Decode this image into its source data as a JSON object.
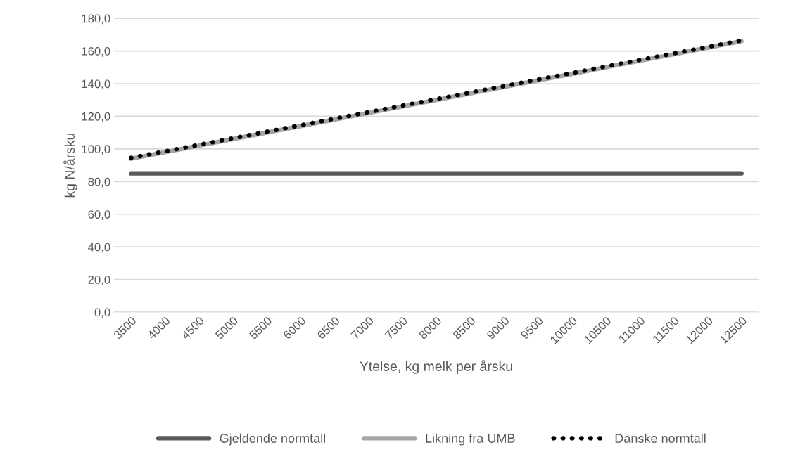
{
  "chart_data": {
    "type": "line",
    "xlabel": "Ytelse, kg melk per årsku",
    "ylabel": "kg N/årsku",
    "categories": [
      "3500",
      "4000",
      "4500",
      "5000",
      "5500",
      "6000",
      "6500",
      "7000",
      "7500",
      "8000",
      "8500",
      "9000",
      "9500",
      "10000",
      "10500",
      "11000",
      "11500",
      "12000",
      "12500"
    ],
    "ylim": [
      0,
      180
    ],
    "yticks": [
      {
        "value": 0,
        "label": "0,0"
      },
      {
        "value": 20,
        "label": "20,0"
      },
      {
        "value": 40,
        "label": "40,0"
      },
      {
        "value": 60,
        "label": "60,0"
      },
      {
        "value": 80,
        "label": "80,0"
      },
      {
        "value": 100,
        "label": "100,0"
      },
      {
        "value": 120,
        "label": "120,0"
      },
      {
        "value": 140,
        "label": "140,0"
      },
      {
        "value": 160,
        "label": "160,0"
      },
      {
        "value": 180,
        "label": "180,0"
      }
    ],
    "grid": "y",
    "legend": "bottom",
    "series": [
      {
        "name": "Gjeldende normtall",
        "color": "#595959",
        "line_style": "solid",
        "values": [
          85,
          85,
          85,
          85,
          85,
          85,
          85,
          85,
          85,
          85,
          85,
          85,
          85,
          85,
          85,
          85,
          85,
          85,
          85
        ]
      },
      {
        "name": "Likning fra UMB",
        "color": "#a5a5a5",
        "line_style": "solid",
        "values": [
          94,
          98,
          102,
          106,
          110,
          114,
          118,
          122,
          126,
          130,
          134,
          138,
          142,
          146,
          150,
          154,
          158,
          162,
          166
        ]
      },
      {
        "name": "Danske normtall",
        "color": "#000000",
        "line_style": "dotted",
        "values": [
          94.5,
          98.5,
          102.5,
          106.5,
          110.5,
          114.5,
          118.5,
          122.5,
          126.5,
          130.5,
          134.5,
          138.5,
          142.5,
          146.5,
          150.5,
          154.5,
          158.5,
          162.5,
          166.5
        ]
      }
    ]
  }
}
